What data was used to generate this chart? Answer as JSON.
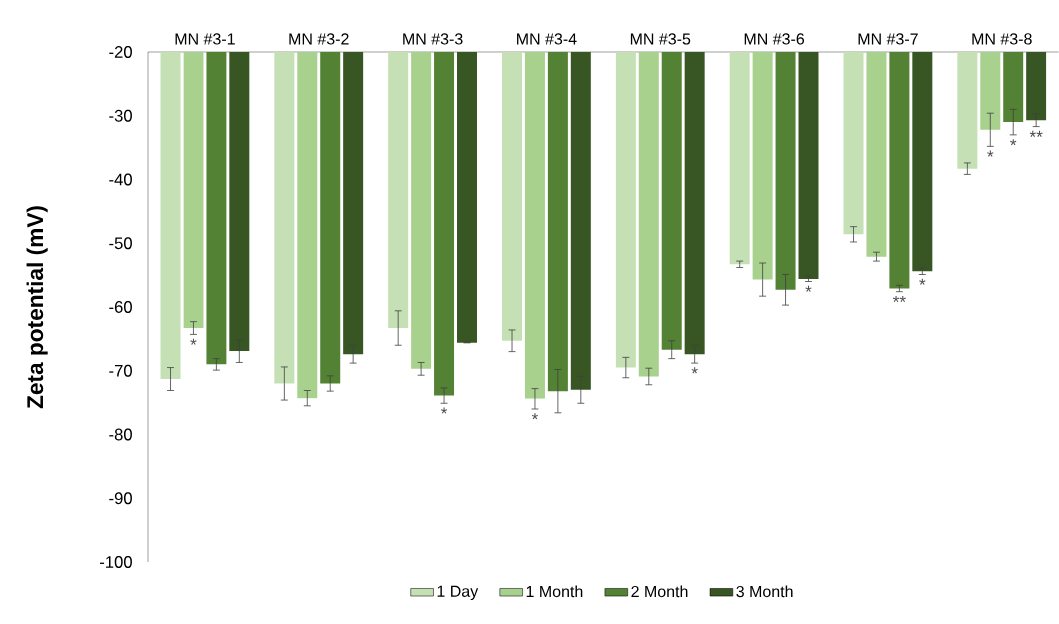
{
  "chart_data": {
    "type": "bar",
    "ylabel": "Zeta potential (mV)",
    "categories": [
      "MN #3-1",
      "MN #3-2",
      "MN #3-3",
      "MN #3-4",
      "MN #3-5",
      "MN #3-6",
      "MN #3-7",
      "MN #3-8"
    ],
    "series": [
      {
        "name": "1 Day",
        "color": "#c5e0b4",
        "values": [
          -71.3,
          -72.0,
          -63.3,
          -65.3,
          -69.5,
          -53.3,
          -48.6,
          -38.3
        ],
        "errors": [
          1.8,
          2.6,
          2.7,
          1.7,
          1.6,
          0.5,
          1.2,
          0.9
        ]
      },
      {
        "name": "1 Month",
        "color": "#a9d18e",
        "values": [
          -63.3,
          -74.3,
          -69.7,
          -74.4,
          -70.9,
          -55.7,
          -52.1,
          -32.2
        ],
        "errors": [
          1.0,
          1.2,
          1.0,
          1.6,
          1.3,
          2.6,
          0.7,
          2.6
        ]
      },
      {
        "name": "2 Month",
        "color": "#548235",
        "values": [
          -69.0,
          -72.0,
          -73.9,
          -73.2,
          -66.7,
          -57.3,
          -57.1,
          -31.0
        ],
        "errors": [
          0.9,
          1.2,
          1.2,
          3.4,
          1.4,
          2.4,
          0.5,
          2.0
        ]
      },
      {
        "name": "3 Month",
        "color": "#375623",
        "values": [
          -66.9,
          -67.4,
          -65.6,
          -73.0,
          -67.4,
          -55.6,
          -54.4,
          -30.7
        ],
        "errors": [
          1.8,
          1.4,
          null,
          2.1,
          1.4,
          0.4,
          0.5,
          1.0
        ]
      }
    ],
    "ylim": [
      -100,
      -20
    ],
    "yticks": [
      -100,
      -90,
      -80,
      -70,
      -60,
      -50,
      -40,
      -30,
      -20
    ],
    "legend": "bottom",
    "annotations": [
      {
        "text": "*",
        "x": "MN #3-1",
        "y": -63.3
      },
      {
        "text": "*",
        "x": "MN #3-3",
        "y": -73.9
      },
      {
        "text": "*",
        "x": "MN #3-4",
        "y": -74.4
      },
      {
        "text": "*",
        "x": "MN #3-5",
        "y": -67.4
      },
      {
        "text": "*",
        "x": "MN #3-6",
        "y": -55.6
      },
      {
        "text": "**",
        "x": "MN #3-7",
        "y": -57.1
      },
      {
        "text": "*",
        "x": "MN #3-7",
        "y": -54.4
      },
      {
        "text": "*",
        "x": "MN #3-8",
        "y": -32.2
      },
      {
        "text": "*",
        "x": "MN #3-8",
        "y": -31.0
      },
      {
        "text": "**",
        "x": "MN #3-8",
        "y": -30.7
      }
    ]
  }
}
